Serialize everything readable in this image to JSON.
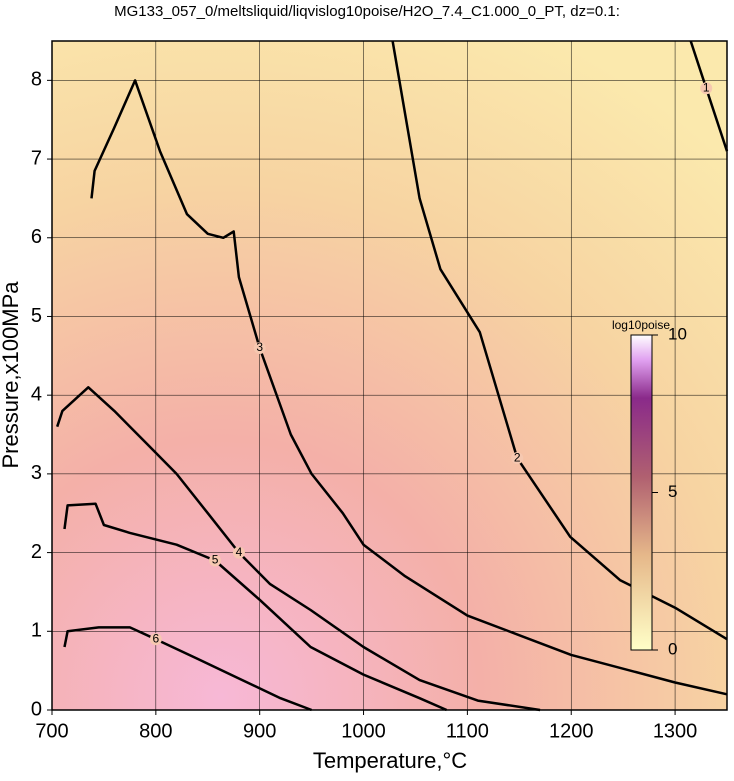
{
  "chart_data": {
    "type": "contour",
    "title": "MG133_057_0/meltsliquid/liqvislog10poise/H2O_7.4_C1.000_0_PT, dz=0.1:",
    "x_label": "Temperature,°C",
    "y_label": "Pressure,x100MPa",
    "xlim": [
      700,
      1350
    ],
    "ylim": [
      0,
      8.5
    ],
    "xticks": [
      700,
      800,
      900,
      1000,
      1100,
      1200,
      1300
    ],
    "yticks": [
      0,
      1,
      2,
      3,
      4,
      5,
      6,
      7,
      8
    ],
    "grid": true,
    "colorbar": {
      "label": "log10poise",
      "lim": [
        0,
        10
      ],
      "ticks": [
        0,
        5,
        10
      ]
    },
    "contours": [
      {
        "level": 1,
        "x": [
          1315,
          1330,
          1350
        ],
        "y": [
          8.5,
          7.9,
          7.1
        ]
      },
      {
        "level": 2,
        "x": [
          1028,
          1054,
          1074,
          1112,
          1148,
          1199,
          1247,
          1300,
          1350
        ],
        "y": [
          8.5,
          6.5,
          5.6,
          4.8,
          3.2,
          2.2,
          1.65,
          1.3,
          0.9
        ]
      },
      {
        "level": 3,
        "x": [
          738,
          741,
          760,
          780,
          804,
          830,
          850,
          865,
          875,
          880,
          900,
          930,
          950,
          980,
          1000,
          1040,
          1100,
          1200,
          1300,
          1350
        ],
        "y": [
          6.5,
          6.85,
          7.4,
          8.0,
          7.1,
          6.3,
          6.05,
          6.0,
          6.08,
          5.5,
          4.6,
          3.5,
          3.0,
          2.5,
          2.1,
          1.7,
          1.2,
          0.7,
          0.35,
          0.2
        ]
      },
      {
        "level": 4,
        "x": [
          705,
          710,
          735,
          760,
          790,
          820,
          850,
          880,
          910,
          949,
          1000,
          1054,
          1110,
          1170
        ],
        "y": [
          3.6,
          3.8,
          4.1,
          3.8,
          3.4,
          3.0,
          2.5,
          2.0,
          1.6,
          1.27,
          0.8,
          0.38,
          0.12,
          0
        ]
      },
      {
        "level": 5,
        "x": [
          712,
          715,
          742,
          750,
          775,
          820,
          857,
          900,
          949,
          1000,
          1054,
          1080
        ],
        "y": [
          2.3,
          2.6,
          2.62,
          2.35,
          2.25,
          2.1,
          1.9,
          1.4,
          0.8,
          0.45,
          0.15,
          0
        ]
      },
      {
        "level": 6,
        "x": [
          712,
          715,
          745,
          775,
          800,
          840,
          880,
          920,
          950
        ],
        "y": [
          0.8,
          1.0,
          1.05,
          1.05,
          0.9,
          0.65,
          0.4,
          0.15,
          0
        ]
      }
    ]
  }
}
